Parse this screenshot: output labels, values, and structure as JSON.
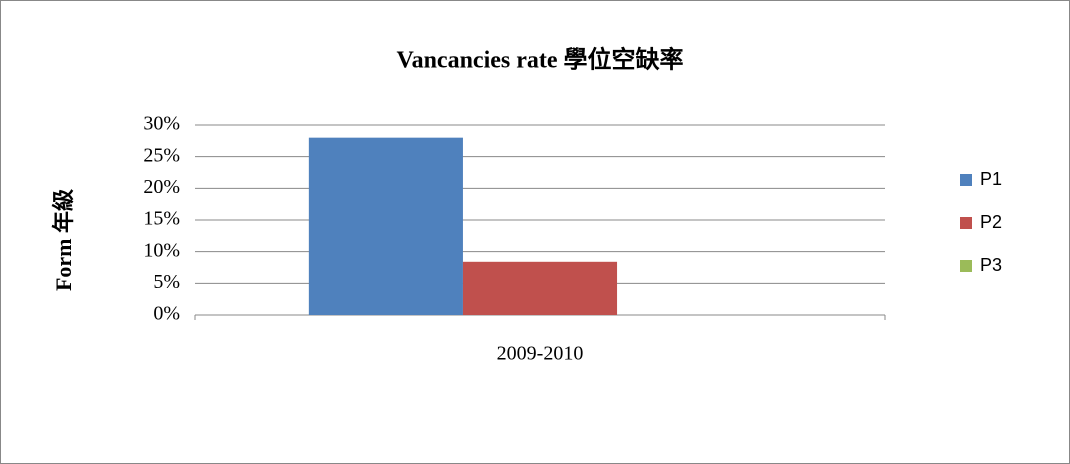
{
  "chart_data": {
    "type": "bar",
    "title": "Vancancies rate 學位空缺率",
    "y_label": "Form 年級",
    "categories": [
      "2009-2010"
    ],
    "series": [
      {
        "name": "P1",
        "color": "#4f81bd",
        "values": [
          28
        ]
      },
      {
        "name": "P2",
        "color": "#c0504d",
        "values": [
          8.4
        ]
      },
      {
        "name": "P3",
        "color": "#9bbb59",
        "values": [
          0
        ]
      }
    ],
    "ylim": [
      0,
      30
    ],
    "yticks": [
      {
        "value": 0,
        "label": "0%"
      },
      {
        "value": 5,
        "label": "5%"
      },
      {
        "value": 10,
        "label": "10%"
      },
      {
        "value": 15,
        "label": "15%"
      },
      {
        "value": 20,
        "label": "20%"
      },
      {
        "value": 25,
        "label": "25%"
      },
      {
        "value": 30,
        "label": "30%"
      }
    ],
    "grid": true,
    "legend": "right"
  }
}
